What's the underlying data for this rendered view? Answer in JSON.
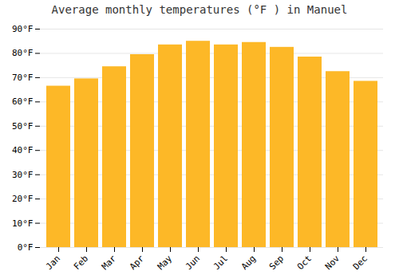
{
  "chart_data": {
    "type": "bar",
    "title": "Average monthly temperatures (°F ) in Manuel",
    "categories": [
      "Jan",
      "Feb",
      "Mar",
      "Apr",
      "May",
      "Jun",
      "Jul",
      "Aug",
      "Sep",
      "Oct",
      "Nov",
      "Dec"
    ],
    "values": [
      66.5,
      69.5,
      74.5,
      79.5,
      83.5,
      85.0,
      83.5,
      84.5,
      82.5,
      78.5,
      72.5,
      68.5
    ],
    "color": "#FDB827",
    "ylim": [
      0,
      90
    ],
    "yticks": [
      {
        "value": 0,
        "label": "0°F"
      },
      {
        "value": 10,
        "label": "10°F"
      },
      {
        "value": 20,
        "label": "20°F"
      },
      {
        "value": 30,
        "label": "30°F"
      },
      {
        "value": 40,
        "label": "40°F"
      },
      {
        "value": 50,
        "label": "50°F"
      },
      {
        "value": 60,
        "label": "60°F"
      },
      {
        "value": 70,
        "label": "70°F"
      },
      {
        "value": 80,
        "label": "80°F"
      },
      {
        "value": 90,
        "label": "90°F"
      }
    ],
    "grid": true
  }
}
